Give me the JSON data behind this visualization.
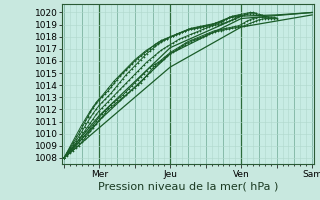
{
  "title": "",
  "xlabel": "Pression niveau de la mer( hPa )",
  "bg_color": "#c8e8df",
  "plot_bg_color": "#c8ece4",
  "grid_color_minor": "#b0d8cc",
  "grid_color_major": "#88bbaa",
  "line_color": "#1a5c28",
  "ylim": [
    1007.5,
    1020.7
  ],
  "yticks": [
    1008,
    1009,
    1010,
    1011,
    1012,
    1013,
    1014,
    1015,
    1016,
    1017,
    1018,
    1019,
    1020
  ],
  "xtick_labels": [
    "",
    "Mer",
    "",
    "Jeu",
    "",
    "Ven",
    "",
    "Sam"
  ],
  "xtick_positions": [
    0,
    48,
    96,
    144,
    192,
    240,
    288,
    336
  ],
  "xlim": [
    -2,
    338
  ],
  "day_lines": [
    48,
    144,
    240
  ],
  "lines_clustered": [
    {
      "x": [
        0,
        4,
        8,
        12,
        16,
        20,
        24,
        28,
        32,
        36,
        40,
        44,
        48,
        52,
        56,
        60,
        64,
        68,
        72,
        76,
        80,
        84,
        88,
        92,
        96,
        100,
        104,
        108,
        112,
        116,
        120,
        124,
        128,
        132,
        136,
        140,
        144,
        148,
        152,
        156,
        160,
        164,
        168,
        172,
        176,
        180,
        184,
        188,
        192,
        196,
        200,
        204,
        208,
        212,
        216,
        220,
        224,
        228,
        232,
        236,
        240,
        244,
        248,
        252,
        256,
        260,
        264,
        268,
        272,
        276,
        280,
        284,
        288
      ],
      "y": [
        1008.0,
        1008.2,
        1008.4,
        1008.6,
        1008.8,
        1009.0,
        1009.3,
        1009.6,
        1009.9,
        1010.2,
        1010.5,
        1010.8,
        1011.1,
        1011.4,
        1011.7,
        1012.0,
        1012.2,
        1012.4,
        1012.6,
        1012.8,
        1013.0,
        1013.2,
        1013.4,
        1013.6,
        1013.8,
        1014.0,
        1014.2,
        1014.5,
        1014.8,
        1015.1,
        1015.4,
        1015.6,
        1015.8,
        1016.0,
        1016.2,
        1016.4,
        1016.6,
        1016.75,
        1016.9,
        1017.05,
        1017.2,
        1017.35,
        1017.5,
        1017.6,
        1017.7,
        1017.8,
        1017.9,
        1018.0,
        1018.1,
        1018.2,
        1018.3,
        1018.4,
        1018.45,
        1018.5,
        1018.55,
        1018.6,
        1018.65,
        1018.7,
        1018.75,
        1018.8,
        1018.85,
        1018.9,
        1019.0,
        1019.1,
        1019.2,
        1019.3,
        1019.4,
        1019.45,
        1019.5,
        1019.5,
        1019.5,
        1019.5,
        1019.5
      ]
    },
    {
      "x": [
        0,
        4,
        8,
        12,
        16,
        20,
        24,
        28,
        32,
        36,
        40,
        44,
        48,
        52,
        56,
        60,
        64,
        68,
        72,
        76,
        80,
        84,
        88,
        92,
        96,
        100,
        104,
        108,
        112,
        116,
        120,
        124,
        128,
        132,
        136,
        140,
        144,
        148,
        152,
        156,
        160,
        164,
        168,
        172,
        176,
        180,
        184,
        188,
        192,
        196,
        200,
        204,
        208,
        212,
        216,
        220,
        224,
        228,
        232,
        236,
        240,
        244,
        248,
        252,
        256,
        260,
        264,
        268,
        272,
        276,
        280,
        284,
        288
      ],
      "y": [
        1008.0,
        1008.25,
        1008.5,
        1008.75,
        1009.0,
        1009.25,
        1009.55,
        1009.85,
        1010.15,
        1010.45,
        1010.75,
        1011.05,
        1011.35,
        1011.65,
        1011.9,
        1012.15,
        1012.4,
        1012.6,
        1012.8,
        1013.0,
        1013.2,
        1013.45,
        1013.7,
        1013.95,
        1014.2,
        1014.45,
        1014.7,
        1014.95,
        1015.2,
        1015.45,
        1015.6,
        1015.75,
        1015.9,
        1016.1,
        1016.3,
        1016.5,
        1016.7,
        1016.85,
        1017.0,
        1017.15,
        1017.3,
        1017.45,
        1017.6,
        1017.7,
        1017.8,
        1017.9,
        1018.0,
        1018.1,
        1018.2,
        1018.3,
        1018.4,
        1018.5,
        1018.55,
        1018.6,
        1018.65,
        1018.7,
        1018.75,
        1018.8,
        1018.85,
        1018.9,
        1019.0,
        1019.15,
        1019.3,
        1019.4,
        1019.5,
        1019.55,
        1019.6,
        1019.6,
        1019.6,
        1019.6,
        1019.6,
        1019.6,
        1019.55
      ]
    },
    {
      "x": [
        0,
        4,
        8,
        12,
        16,
        20,
        24,
        28,
        32,
        36,
        40,
        44,
        48,
        52,
        56,
        60,
        64,
        68,
        72,
        76,
        80,
        84,
        88,
        92,
        96,
        100,
        104,
        108,
        112,
        116,
        120,
        124,
        128,
        132,
        136,
        140,
        144,
        148,
        152,
        156,
        160,
        164,
        168,
        172,
        176,
        180,
        184,
        188,
        192,
        196,
        200,
        204,
        208,
        212,
        216,
        220,
        224,
        228,
        232,
        236,
        240,
        244,
        248,
        252,
        256,
        260,
        264,
        268,
        272
      ],
      "y": [
        1008.0,
        1008.3,
        1008.6,
        1008.9,
        1009.2,
        1009.5,
        1009.85,
        1010.2,
        1010.55,
        1010.9,
        1011.25,
        1011.6,
        1011.9,
        1012.15,
        1012.4,
        1012.65,
        1012.9,
        1013.15,
        1013.4,
        1013.65,
        1013.9,
        1014.15,
        1014.4,
        1014.65,
        1014.9,
        1015.15,
        1015.4,
        1015.65,
        1015.9,
        1016.1,
        1016.3,
        1016.5,
        1016.7,
        1016.9,
        1017.05,
        1017.2,
        1017.35,
        1017.5,
        1017.65,
        1017.8,
        1017.9,
        1018.0,
        1018.1,
        1018.2,
        1018.3,
        1018.4,
        1018.5,
        1018.6,
        1018.7,
        1018.8,
        1018.9,
        1018.95,
        1019.0,
        1019.05,
        1019.1,
        1019.2,
        1019.3,
        1019.4,
        1019.5,
        1019.6,
        1019.7,
        1019.8,
        1019.85,
        1019.9,
        1019.9,
        1019.9,
        1019.85,
        1019.8,
        1019.7
      ]
    },
    {
      "x": [
        0,
        4,
        8,
        12,
        16,
        20,
        24,
        28,
        32,
        36,
        40,
        44,
        48,
        52,
        56,
        60,
        64,
        68,
        72,
        76,
        80,
        84,
        88,
        92,
        96,
        100,
        104,
        108,
        112,
        116,
        120,
        124,
        128,
        132,
        136,
        140,
        144,
        148,
        152,
        156,
        160,
        164,
        168,
        172,
        176,
        180,
        184,
        188,
        192,
        196,
        200,
        204,
        208,
        212,
        216,
        220,
        224,
        228,
        232,
        236,
        240,
        244,
        248,
        252,
        256,
        260
      ],
      "y": [
        1008.0,
        1008.35,
        1008.7,
        1009.05,
        1009.4,
        1009.75,
        1010.15,
        1010.55,
        1010.95,
        1011.35,
        1011.7,
        1012.05,
        1012.35,
        1012.6,
        1012.85,
        1013.1,
        1013.35,
        1013.65,
        1013.95,
        1014.25,
        1014.55,
        1014.85,
        1015.1,
        1015.35,
        1015.6,
        1015.85,
        1016.1,
        1016.35,
        1016.6,
        1016.8,
        1017.0,
        1017.2,
        1017.4,
        1017.55,
        1017.7,
        1017.85,
        1018.0,
        1018.1,
        1018.2,
        1018.3,
        1018.4,
        1018.5,
        1018.6,
        1018.7,
        1018.75,
        1018.8,
        1018.85,
        1018.9,
        1018.95,
        1019.0,
        1019.05,
        1019.1,
        1019.15,
        1019.2,
        1019.3,
        1019.45,
        1019.6,
        1019.7,
        1019.75,
        1019.8,
        1019.85,
        1019.9,
        1019.95,
        1020.0,
        1020.0,
        1019.95
      ]
    },
    {
      "x": [
        0,
        4,
        8,
        12,
        16,
        20,
        24,
        28,
        32,
        36,
        40,
        44,
        48,
        52,
        56,
        60,
        64,
        68,
        72,
        76,
        80,
        84,
        88,
        92,
        96,
        100,
        104,
        108,
        112,
        116,
        120,
        124,
        128,
        132,
        136,
        140,
        144,
        148,
        152,
        156,
        160,
        164,
        168,
        172,
        176,
        180,
        184,
        188,
        192,
        196,
        200,
        204,
        208,
        212,
        216,
        220,
        224,
        228,
        232,
        236,
        240
      ],
      "y": [
        1008.0,
        1008.4,
        1008.8,
        1009.2,
        1009.6,
        1010.0,
        1010.45,
        1010.9,
        1011.35,
        1011.8,
        1012.15,
        1012.5,
        1012.8,
        1013.05,
        1013.3,
        1013.55,
        1013.85,
        1014.15,
        1014.45,
        1014.75,
        1015.0,
        1015.25,
        1015.5,
        1015.75,
        1016.0,
        1016.2,
        1016.4,
        1016.6,
        1016.8,
        1017.0,
        1017.2,
        1017.4,
        1017.55,
        1017.7,
        1017.8,
        1017.9,
        1018.0,
        1018.1,
        1018.2,
        1018.3,
        1018.4,
        1018.5,
        1018.6,
        1018.65,
        1018.7,
        1018.75,
        1018.8,
        1018.85,
        1018.9,
        1018.95,
        1019.0,
        1019.1,
        1019.2,
        1019.3,
        1019.4,
        1019.5,
        1019.6,
        1019.65,
        1019.7,
        1019.75,
        1019.8
      ]
    },
    {
      "x": [
        0,
        4,
        8,
        12,
        16,
        20,
        24,
        28,
        32,
        36,
        40,
        44,
        48,
        52,
        56,
        60,
        64,
        68,
        72,
        76,
        80,
        84,
        88,
        92,
        96,
        100,
        104,
        108,
        112,
        116,
        120,
        124,
        128,
        132,
        136,
        140,
        144,
        148,
        152,
        156,
        160,
        164,
        168,
        172,
        176,
        180,
        184,
        188,
        192,
        196,
        200,
        204,
        208,
        212,
        216,
        220,
        224,
        228,
        232,
        236,
        240
      ],
      "y": [
        1008.0,
        1008.45,
        1008.9,
        1009.35,
        1009.8,
        1010.25,
        1010.7,
        1011.1,
        1011.5,
        1011.9,
        1012.25,
        1012.6,
        1012.9,
        1013.15,
        1013.45,
        1013.75,
        1014.05,
        1014.35,
        1014.6,
        1014.85,
        1015.1,
        1015.35,
        1015.6,
        1015.85,
        1016.1,
        1016.3,
        1016.5,
        1016.7,
        1016.9,
        1017.05,
        1017.2,
        1017.35,
        1017.5,
        1017.65,
        1017.75,
        1017.85,
        1017.95,
        1018.05,
        1018.15,
        1018.25,
        1018.35,
        1018.45,
        1018.55,
        1018.6,
        1018.65,
        1018.7,
        1018.75,
        1018.8,
        1018.85,
        1018.9,
        1018.95,
        1019.05,
        1019.15,
        1019.25,
        1019.35,
        1019.45,
        1019.55,
        1019.6,
        1019.65,
        1019.7,
        1019.75
      ]
    }
  ],
  "lines_long": [
    {
      "x": [
        0,
        48,
        144,
        240,
        336
      ],
      "y": [
        1008.0,
        1011.1,
        1016.6,
        1019.5,
        1020.0
      ]
    },
    {
      "x": [
        0,
        48,
        144,
        240,
        336
      ],
      "y": [
        1008.0,
        1010.5,
        1015.5,
        1018.8,
        1019.8
      ]
    },
    {
      "x": [
        0,
        48,
        144,
        240,
        288,
        336
      ],
      "y": [
        1008.0,
        1011.5,
        1017.1,
        1019.7,
        1019.8,
        1020.0
      ]
    }
  ],
  "marker": "+",
  "marker_size": 2,
  "linewidth": 0.7,
  "linewidth_long": 0.9,
  "fontsize_ticks": 6.5,
  "fontsize_xlabel": 8
}
